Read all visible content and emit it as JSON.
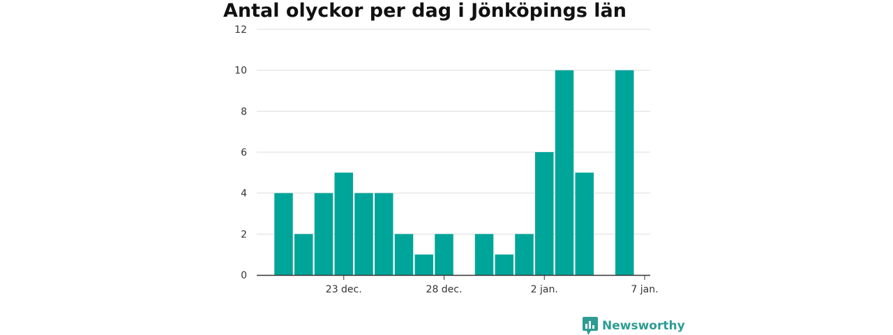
{
  "chart_data": {
    "type": "bar",
    "title": "Antal olyckor per dag i Jönköpings län",
    "xlabel": "",
    "ylabel": "",
    "ylim": [
      0,
      12
    ],
    "y_ticks": [
      0,
      2,
      4,
      6,
      8,
      10,
      12
    ],
    "grid": true,
    "bar_color": "#00a59a",
    "x": [
      "2023-12-20",
      "2023-12-21",
      "2023-12-22",
      "2023-12-23",
      "2023-12-24",
      "2023-12-25",
      "2023-12-26",
      "2023-12-27",
      "2023-12-28",
      "2023-12-29",
      "2023-12-30",
      "2023-12-31",
      "2024-01-01",
      "2024-01-02",
      "2024-01-03",
      "2024-01-04",
      "2024-01-05",
      "2024-01-06"
    ],
    "values": [
      4,
      2,
      4,
      5,
      4,
      4,
      2,
      1,
      2,
      0,
      2,
      1,
      2,
      6,
      10,
      5,
      0,
      10
    ],
    "x_ticks": [
      {
        "date": "2023-12-23",
        "label": "23 dec."
      },
      {
        "date": "2023-12-28",
        "label": "28 dec."
      },
      {
        "date": "2024-01-02",
        "label": "2 jan."
      },
      {
        "date": "2024-01-07",
        "label": "7 jan."
      }
    ]
  },
  "brand": {
    "name": "Newsworthy",
    "icon": "bar-chart-speech-bubble-icon",
    "color": "#2e9c92"
  }
}
